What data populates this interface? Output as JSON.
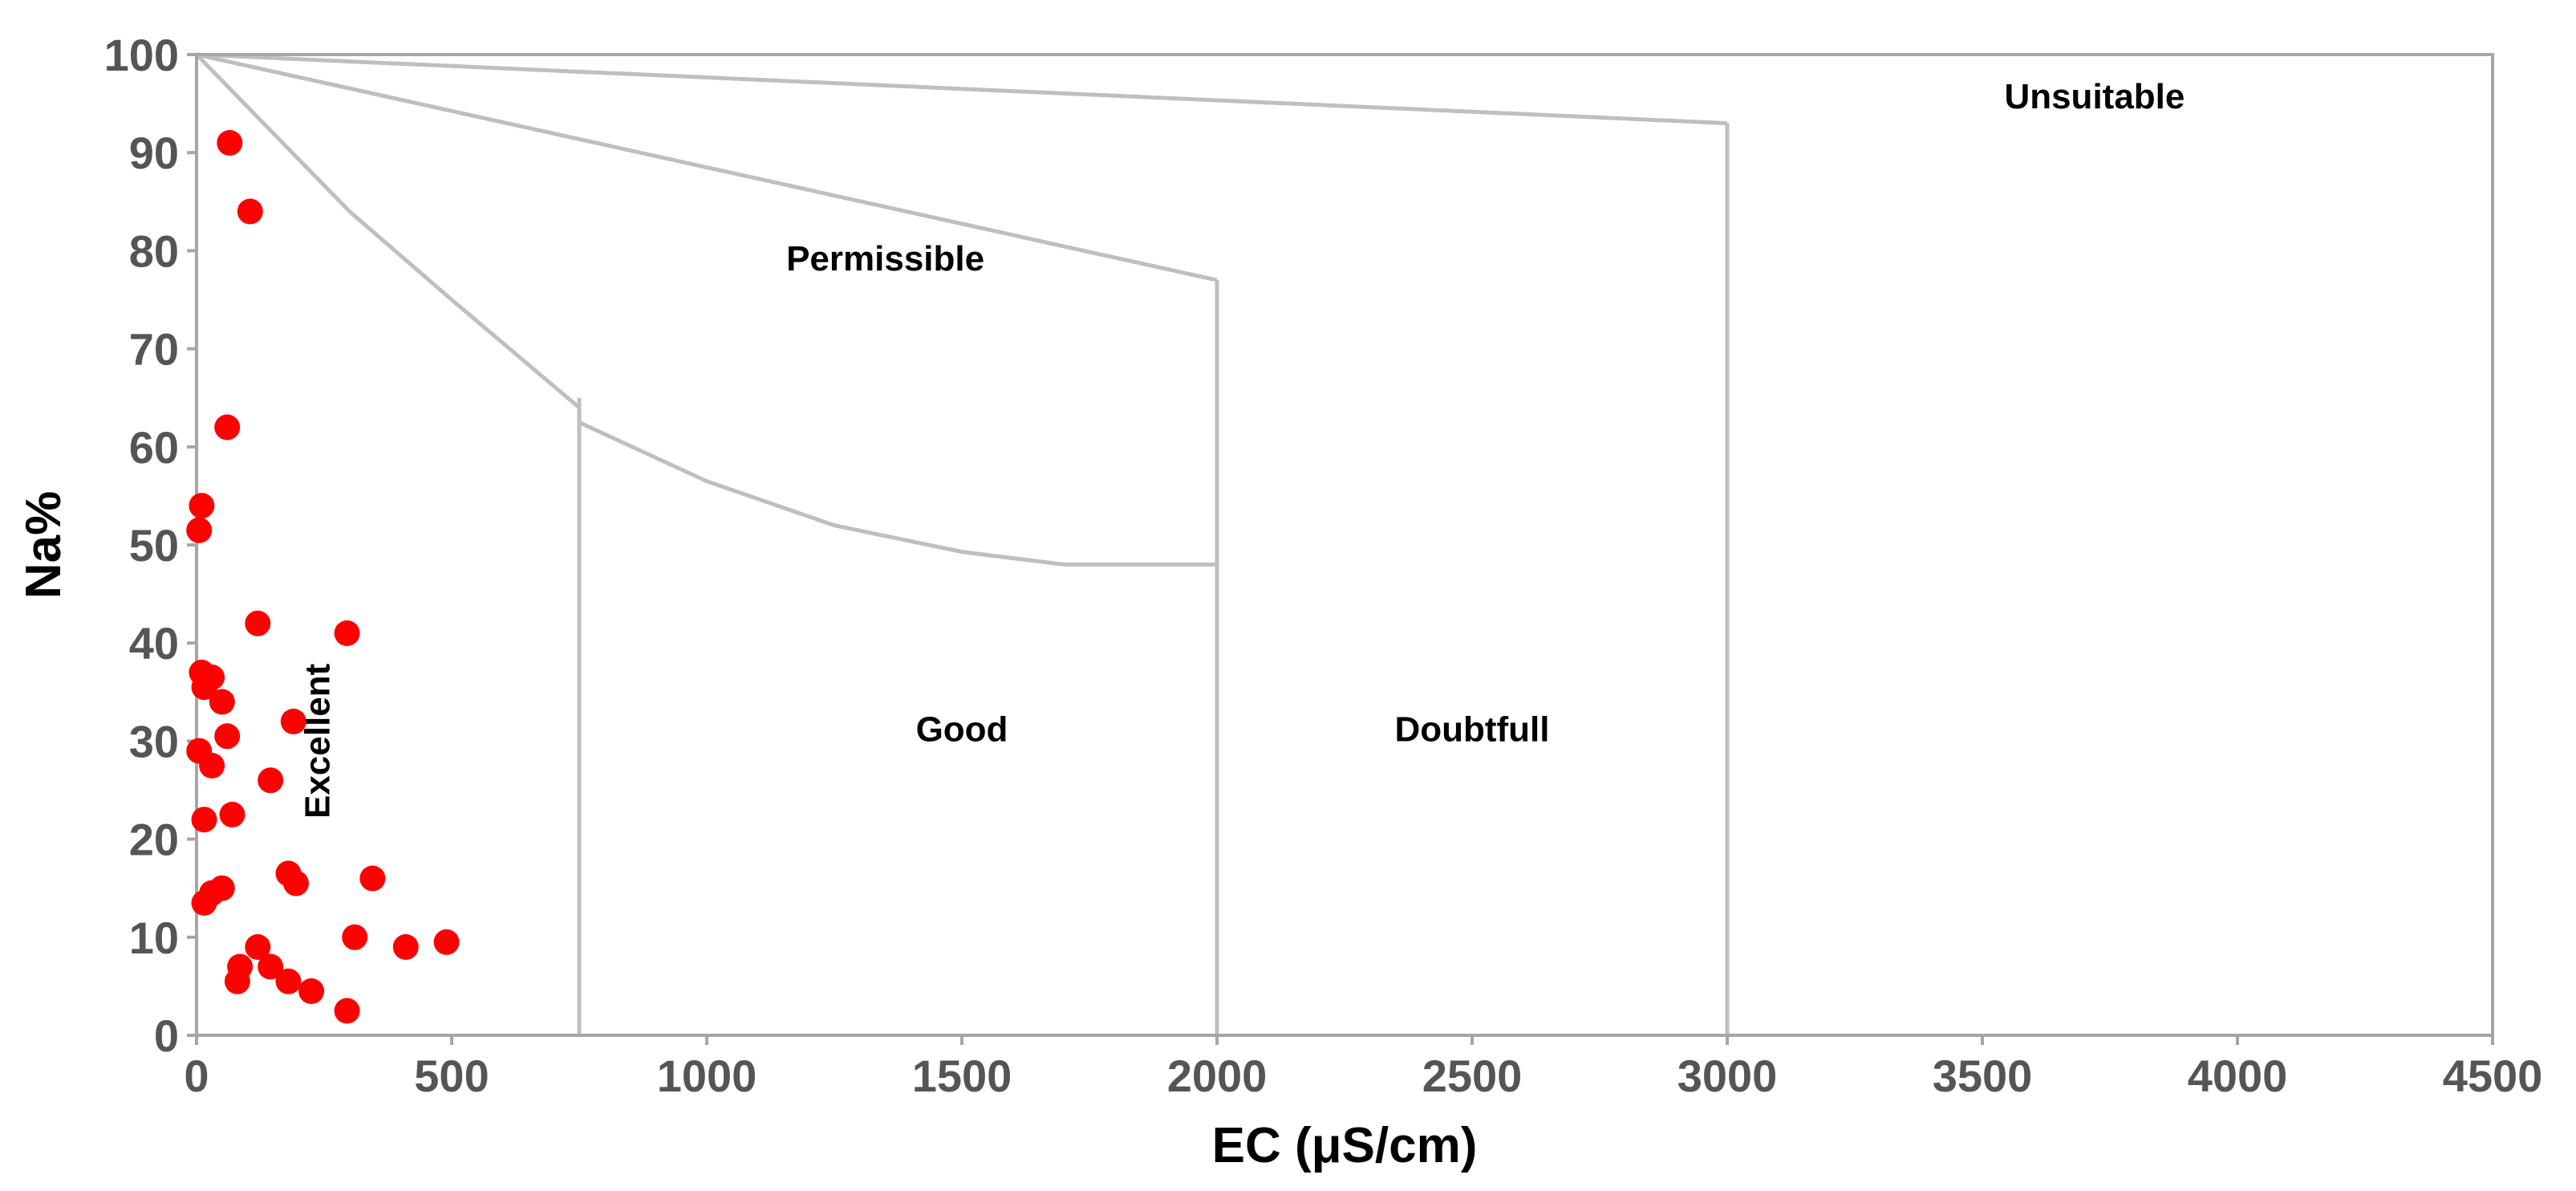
{
  "chart_data": {
    "type": "scatter",
    "xlabel": "EC (μS/cm)",
    "ylabel": "Na%",
    "xlim": [
      0,
      4500
    ],
    "ylim": [
      0,
      100
    ],
    "xticks": [
      "0",
      "500",
      "1000",
      "1500",
      "2000",
      "2500",
      "3000",
      "3500",
      "4000",
      "4500"
    ],
    "yticks": [
      "0",
      "10",
      "20",
      "30",
      "40",
      "50",
      "60",
      "70",
      "80",
      "90",
      "100"
    ],
    "grid": false,
    "point_color": "#ff0000",
    "boundary_color": "#bfbfbf",
    "points": [
      {
        "x": 65,
        "y": 91
      },
      {
        "x": 105,
        "y": 84
      },
      {
        "x": 60,
        "y": 62
      },
      {
        "x": 10,
        "y": 54
      },
      {
        "x": 5,
        "y": 51.5
      },
      {
        "x": 120,
        "y": 42
      },
      {
        "x": 295,
        "y": 41
      },
      {
        "x": 10,
        "y": 37
      },
      {
        "x": 30,
        "y": 36.5
      },
      {
        "x": 15,
        "y": 35.5
      },
      {
        "x": 50,
        "y": 34
      },
      {
        "x": 190,
        "y": 32
      },
      {
        "x": 60,
        "y": 30.5
      },
      {
        "x": 5,
        "y": 29
      },
      {
        "x": 30,
        "y": 27.5
      },
      {
        "x": 145,
        "y": 26
      },
      {
        "x": 70,
        "y": 22.5
      },
      {
        "x": 15,
        "y": 22
      },
      {
        "x": 180,
        "y": 16.5
      },
      {
        "x": 345,
        "y": 16
      },
      {
        "x": 195,
        "y": 15.5
      },
      {
        "x": 50,
        "y": 15
      },
      {
        "x": 30,
        "y": 14.5
      },
      {
        "x": 15,
        "y": 13.5
      },
      {
        "x": 310,
        "y": 10
      },
      {
        "x": 490,
        "y": 9.5
      },
      {
        "x": 410,
        "y": 9
      },
      {
        "x": 120,
        "y": 9
      },
      {
        "x": 85,
        "y": 7
      },
      {
        "x": 145,
        "y": 7
      },
      {
        "x": 80,
        "y": 5.5
      },
      {
        "x": 180,
        "y": 5.5
      },
      {
        "x": 225,
        "y": 4.5
      },
      {
        "x": 295,
        "y": 2.5
      }
    ],
    "boundaries": [
      {
        "name": "excellent-good",
        "points": [
          [
            0,
            100
          ],
          [
            150,
            92
          ],
          [
            300,
            84
          ],
          [
            500,
            75
          ],
          [
            750,
            64
          ]
        ]
      },
      {
        "name": "excellent-good-vertical",
        "points": [
          [
            750,
            0
          ],
          [
            750,
            65
          ]
        ]
      },
      {
        "name": "good-permissible",
        "points": [
          [
            750,
            62.5
          ],
          [
            1000,
            56.5
          ],
          [
            1250,
            52
          ],
          [
            1500,
            49.3
          ],
          [
            1700,
            48
          ],
          [
            2000,
            48
          ]
        ]
      },
      {
        "name": "permissible-doubtful",
        "points": [
          [
            0,
            100
          ],
          [
            2000,
            77
          ]
        ]
      },
      {
        "name": "good-doubtful-vertical",
        "points": [
          [
            2000,
            0
          ],
          [
            2000,
            77
          ]
        ]
      },
      {
        "name": "doubtful-unsuitable",
        "points": [
          [
            0,
            100
          ],
          [
            3000,
            93
          ]
        ]
      },
      {
        "name": "doubtful-unsuitable-vertical",
        "points": [
          [
            3000,
            0
          ],
          [
            3000,
            93
          ]
        ]
      }
    ],
    "annotations": [
      {
        "text": "Excellent",
        "x": 260,
        "y": 30,
        "rotate": true
      },
      {
        "text": "Permissible",
        "x": 1350,
        "y": 78,
        "rotate": false
      },
      {
        "text": "Good",
        "x": 1500,
        "y": 30,
        "rotate": false
      },
      {
        "text": "Doubtfull",
        "x": 2500,
        "y": 30,
        "rotate": false
      },
      {
        "text": "Unsuitable",
        "x": 3720,
        "y": 94.5,
        "rotate": false
      }
    ]
  }
}
